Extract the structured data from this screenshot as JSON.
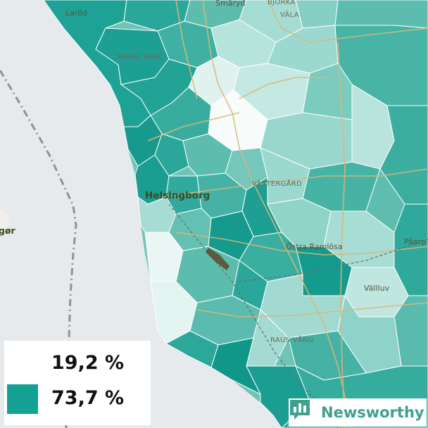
{
  "map": {
    "places": {
      "larod": "Laröd",
      "smaryd": "Småryd",
      "bjorka": "BJÖRKA",
      "vala": "VÄLA",
      "maria_park": "MARIA PARK",
      "helsingborg": "Helsingborg",
      "vastergard": "VÄSTERGÅRD",
      "ostra_ramlosa": "Östra Ramlösa",
      "vallluv": "Vällluv",
      "paarp": "Påarp",
      "raus_vang": "RAUS VÅNG",
      "helsingor_partial": "gør"
    }
  },
  "legend": {
    "low_label": "19,2 %",
    "high_label": "73,7 %",
    "low_color": "#ffffff",
    "high_color": "#15a094"
  },
  "brand": {
    "name": "Newsworthy",
    "color": "#3fa08f"
  }
}
